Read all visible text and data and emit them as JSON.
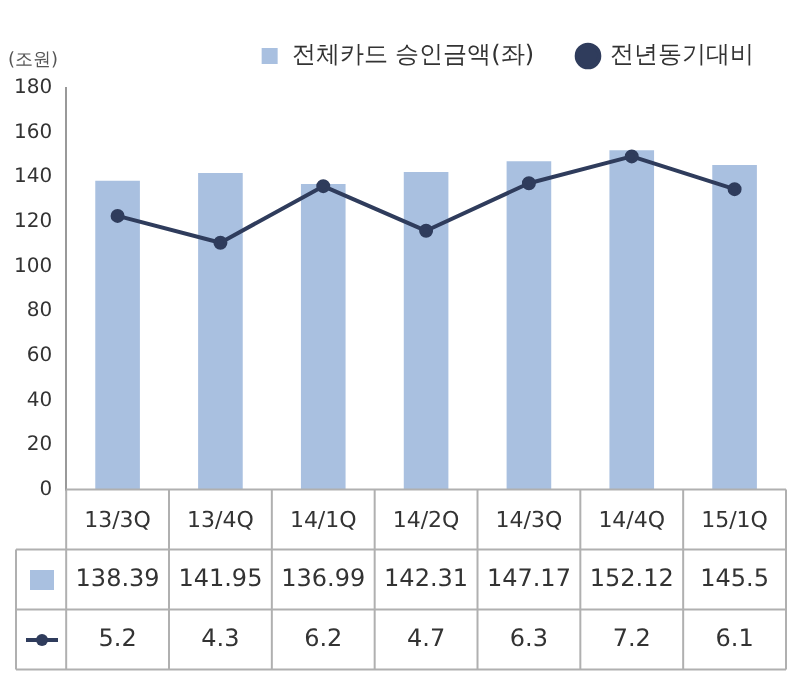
{
  "chart_data": {
    "type": "bar",
    "ylabel": "(조원)",
    "categories": [
      "13/3Q",
      "13/4Q",
      "14/1Q",
      "14/2Q",
      "14/3Q",
      "14/4Q",
      "15/1Q"
    ],
    "series": [
      {
        "name": "전체카드 승인금액(좌)",
        "color": "#a9c0e0",
        "values": [
          138.39,
          141.95,
          136.99,
          142.31,
          147.17,
          152.12,
          145.5
        ]
      },
      {
        "name": "전년동기대비",
        "type": "line",
        "axis": "y2",
        "color": "#2f3c5c",
        "values": [
          5.2,
          4.3,
          6.2,
          4.7,
          6.3,
          7.2,
          6.1
        ]
      }
    ],
    "ylim": [
      0,
      180
    ],
    "yticks": [
      0,
      20,
      40,
      60,
      80,
      100,
      120,
      140,
      160,
      180
    ],
    "y2lim": [
      -4,
      9.5
    ],
    "grid": false,
    "legend": "top right",
    "marker": "circle",
    "line_style": "solid",
    "data_labels": true
  }
}
